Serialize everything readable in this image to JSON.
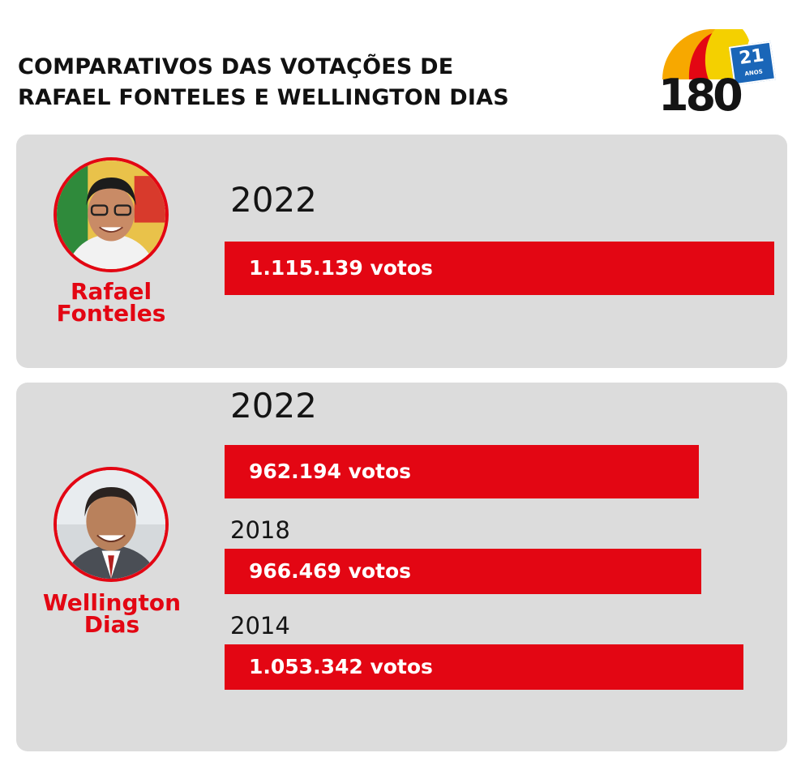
{
  "title": {
    "line1": "COMPARATIVOS DAS VOTAÇÕES DE",
    "line2": "RAFAEL FONTELES E WELLINGTON DIAS"
  },
  "logo": {
    "number": "180",
    "badge_number": "21",
    "badge_text": "ANOS"
  },
  "colors": {
    "bar": "#e30613",
    "panel": "#dcdcdc",
    "name": "#e30613"
  },
  "candidates": [
    {
      "name_line1": "Rafael",
      "name_line2": "Fonteles"
    },
    {
      "name_line1": "Wellington",
      "name_line2": "Dias"
    }
  ],
  "chart_data": [
    {
      "type": "bar",
      "orientation": "horizontal",
      "categories": [
        "2022"
      ],
      "values": [
        1115139
      ],
      "labels": [
        "1.115.139 votos"
      ]
    },
    {
      "type": "bar",
      "orientation": "horizontal",
      "categories": [
        "2022",
        "2018",
        "2014"
      ],
      "values": [
        962194,
        966469,
        1053342
      ],
      "labels": [
        "962.194 votos",
        "966.469 votos",
        "1.053.342 votos"
      ]
    }
  ]
}
